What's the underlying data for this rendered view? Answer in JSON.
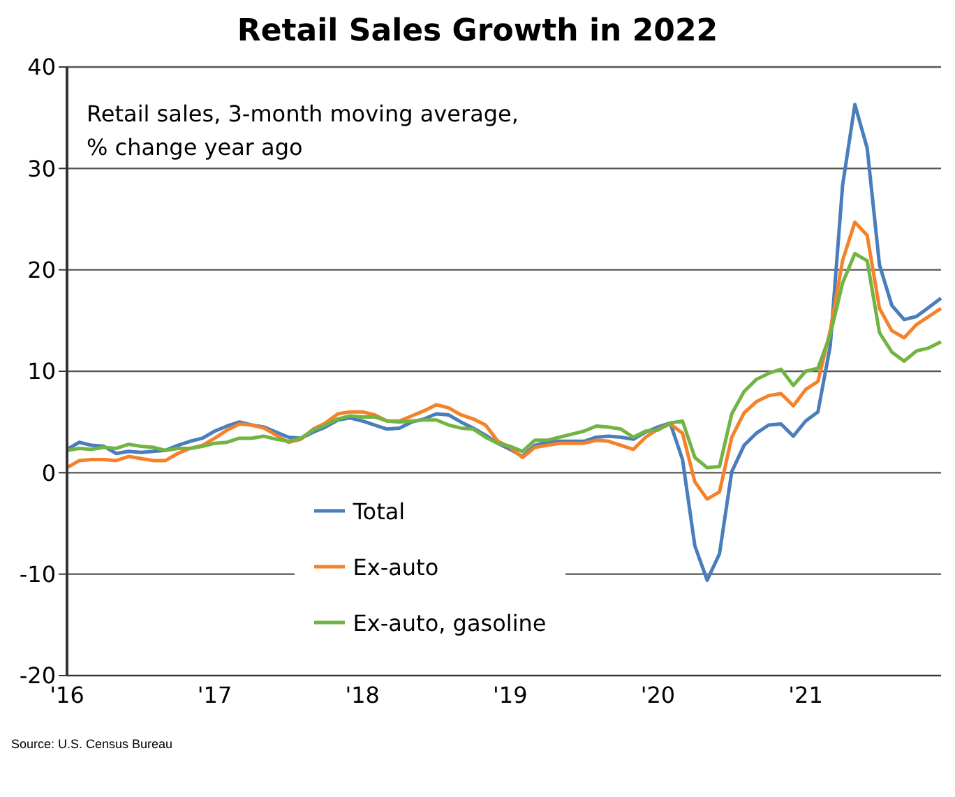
{
  "chart_data": {
    "type": "line",
    "title": "Retail Sales Growth in 2022",
    "subtitle": "Retail sales, 3-month moving average,\n% change year ago",
    "categories": [
      "'16",
      null,
      null,
      null,
      null,
      null,
      null,
      null,
      null,
      null,
      null,
      null,
      "'17",
      null,
      null,
      null,
      null,
      null,
      null,
      null,
      null,
      null,
      null,
      null,
      "'18",
      null,
      null,
      null,
      null,
      null,
      null,
      null,
      null,
      null,
      null,
      null,
      "'19",
      null,
      null,
      null,
      null,
      null,
      null,
      null,
      null,
      null,
      null,
      null,
      "'20",
      null,
      null,
      null,
      null,
      null,
      null,
      null,
      null,
      null,
      null,
      null,
      "'21",
      null,
      null,
      null,
      null,
      null,
      null,
      null,
      null,
      null,
      null,
      null
    ],
    "series": [
      {
        "name": "Total",
        "color": "#4a7ebb",
        "values": [
          2.3,
          3.0,
          2.7,
          2.6,
          1.9,
          2.1,
          2.0,
          2.1,
          2.2,
          2.7,
          3.1,
          3.4,
          4.1,
          4.6,
          5.0,
          4.7,
          4.5,
          4.0,
          3.5,
          3.4,
          4.0,
          4.5,
          5.2,
          5.4,
          5.1,
          4.7,
          4.3,
          4.4,
          5.0,
          5.3,
          5.8,
          5.7,
          5.0,
          4.4,
          3.7,
          2.9,
          2.3,
          1.6,
          2.7,
          3.0,
          3.1,
          3.1,
          3.1,
          3.5,
          3.6,
          3.5,
          3.3,
          4.0,
          4.5,
          4.9,
          1.3,
          -7.2,
          -10.6,
          -8.0,
          0.1,
          2.7,
          3.9,
          4.7,
          4.8,
          3.6,
          5.1,
          6.0,
          12.5,
          28.3,
          36.3,
          32.0,
          20.5,
          16.5,
          15.1,
          15.4,
          16.3,
          17.2
        ]
      },
      {
        "name": "Ex-auto",
        "color": "#f5822a",
        "values": [
          0.5,
          1.2,
          1.3,
          1.3,
          1.2,
          1.6,
          1.4,
          1.2,
          1.2,
          1.9,
          2.4,
          2.7,
          3.4,
          4.2,
          4.8,
          4.7,
          4.4,
          3.7,
          3.0,
          3.3,
          4.3,
          4.9,
          5.8,
          6.0,
          6.0,
          5.7,
          5.1,
          5.1,
          5.6,
          6.1,
          6.7,
          6.4,
          5.7,
          5.3,
          4.7,
          3.1,
          2.5,
          1.5,
          2.5,
          2.7,
          2.9,
          2.9,
          2.9,
          3.2,
          3.1,
          2.7,
          2.3,
          3.5,
          4.3,
          4.8,
          3.9,
          -0.9,
          -2.6,
          -1.9,
          3.5,
          5.9,
          7.0,
          7.6,
          7.8,
          6.6,
          8.2,
          9.0,
          14.0,
          20.9,
          24.7,
          23.4,
          16.2,
          14.0,
          13.3,
          14.6,
          15.4,
          16.2
        ]
      },
      {
        "name": "Ex-auto, gasoline",
        "color": "#72b443",
        "values": [
          2.2,
          2.4,
          2.3,
          2.5,
          2.4,
          2.8,
          2.6,
          2.5,
          2.2,
          2.4,
          2.4,
          2.6,
          2.9,
          3.0,
          3.4,
          3.4,
          3.6,
          3.3,
          3.1,
          3.4,
          4.2,
          4.7,
          5.3,
          5.6,
          5.5,
          5.5,
          5.1,
          5.0,
          5.1,
          5.2,
          5.2,
          4.7,
          4.4,
          4.3,
          3.5,
          2.9,
          2.6,
          2.1,
          3.2,
          3.2,
          3.5,
          3.8,
          4.1,
          4.6,
          4.5,
          4.3,
          3.5,
          4.1,
          4.2,
          4.9,
          5.1,
          1.5,
          0.5,
          0.6,
          5.8,
          8.0,
          9.2,
          9.8,
          10.2,
          8.6,
          10.0,
          10.3,
          13.6,
          18.7,
          21.6,
          20.9,
          13.8,
          11.9,
          11.0,
          12.0,
          12.3,
          12.9
        ]
      }
    ],
    "ylim": [
      -20,
      40
    ],
    "yticks": [
      -20,
      -10,
      0,
      10,
      20,
      30,
      40
    ],
    "grid": "y",
    "legend": "bottom",
    "annotations": [
      "Source: U.S. Census Bureau"
    ]
  }
}
